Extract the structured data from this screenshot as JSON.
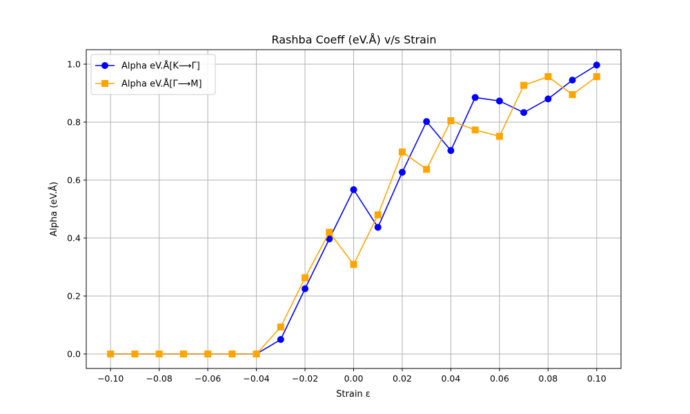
{
  "chart_data": {
    "type": "line",
    "title": "Rashba Coeff (eV.Å) v/s Strain",
    "xlabel": "Strain ε",
    "ylabel": "Alpha (eV.Å)",
    "xlim": [
      -0.11,
      0.11
    ],
    "ylim": [
      -0.05,
      1.05
    ],
    "xticks": [
      -0.1,
      -0.08,
      -0.06,
      -0.04,
      -0.02,
      0.0,
      0.02,
      0.04,
      0.06,
      0.08,
      0.1
    ],
    "xtick_labels": [
      "−0.10",
      "−0.08",
      "−0.06",
      "−0.04",
      "−0.02",
      "0.00",
      "0.02",
      "0.04",
      "0.06",
      "0.08",
      "0.10"
    ],
    "yticks": [
      0.0,
      0.2,
      0.4,
      0.6,
      0.8,
      1.0
    ],
    "ytick_labels": [
      "0.0",
      "0.2",
      "0.4",
      "0.6",
      "0.8",
      "1.0"
    ],
    "grid": true,
    "legend_position": "top-left",
    "x": [
      -0.1,
      -0.09,
      -0.08,
      -0.07,
      -0.06,
      -0.05,
      -0.04,
      -0.03,
      -0.02,
      -0.01,
      0.0,
      0.01,
      0.02,
      0.03,
      0.04,
      0.05,
      0.06,
      0.07,
      0.08,
      0.09,
      0.1
    ],
    "series": [
      {
        "name": "Alpha eV.Å[K⟶Γ]",
        "color": "#0000ff",
        "marker": "circle",
        "values": [
          0,
          0,
          0,
          0,
          0,
          0,
          0,
          0.05,
          0.225,
          0.397,
          0.567,
          0.437,
          0.627,
          0.802,
          0.702,
          0.885,
          0.873,
          0.833,
          0.88,
          0.945,
          0.997
        ]
      },
      {
        "name": "Alpha eV.Å[Γ⟶M]",
        "color": "#ffa500",
        "marker": "square",
        "values": [
          0,
          0,
          0,
          0,
          0,
          0,
          0,
          0.093,
          0.263,
          0.42,
          0.309,
          0.48,
          0.697,
          0.637,
          0.805,
          0.773,
          0.751,
          0.927,
          0.957,
          0.895,
          0.957
        ]
      }
    ]
  }
}
